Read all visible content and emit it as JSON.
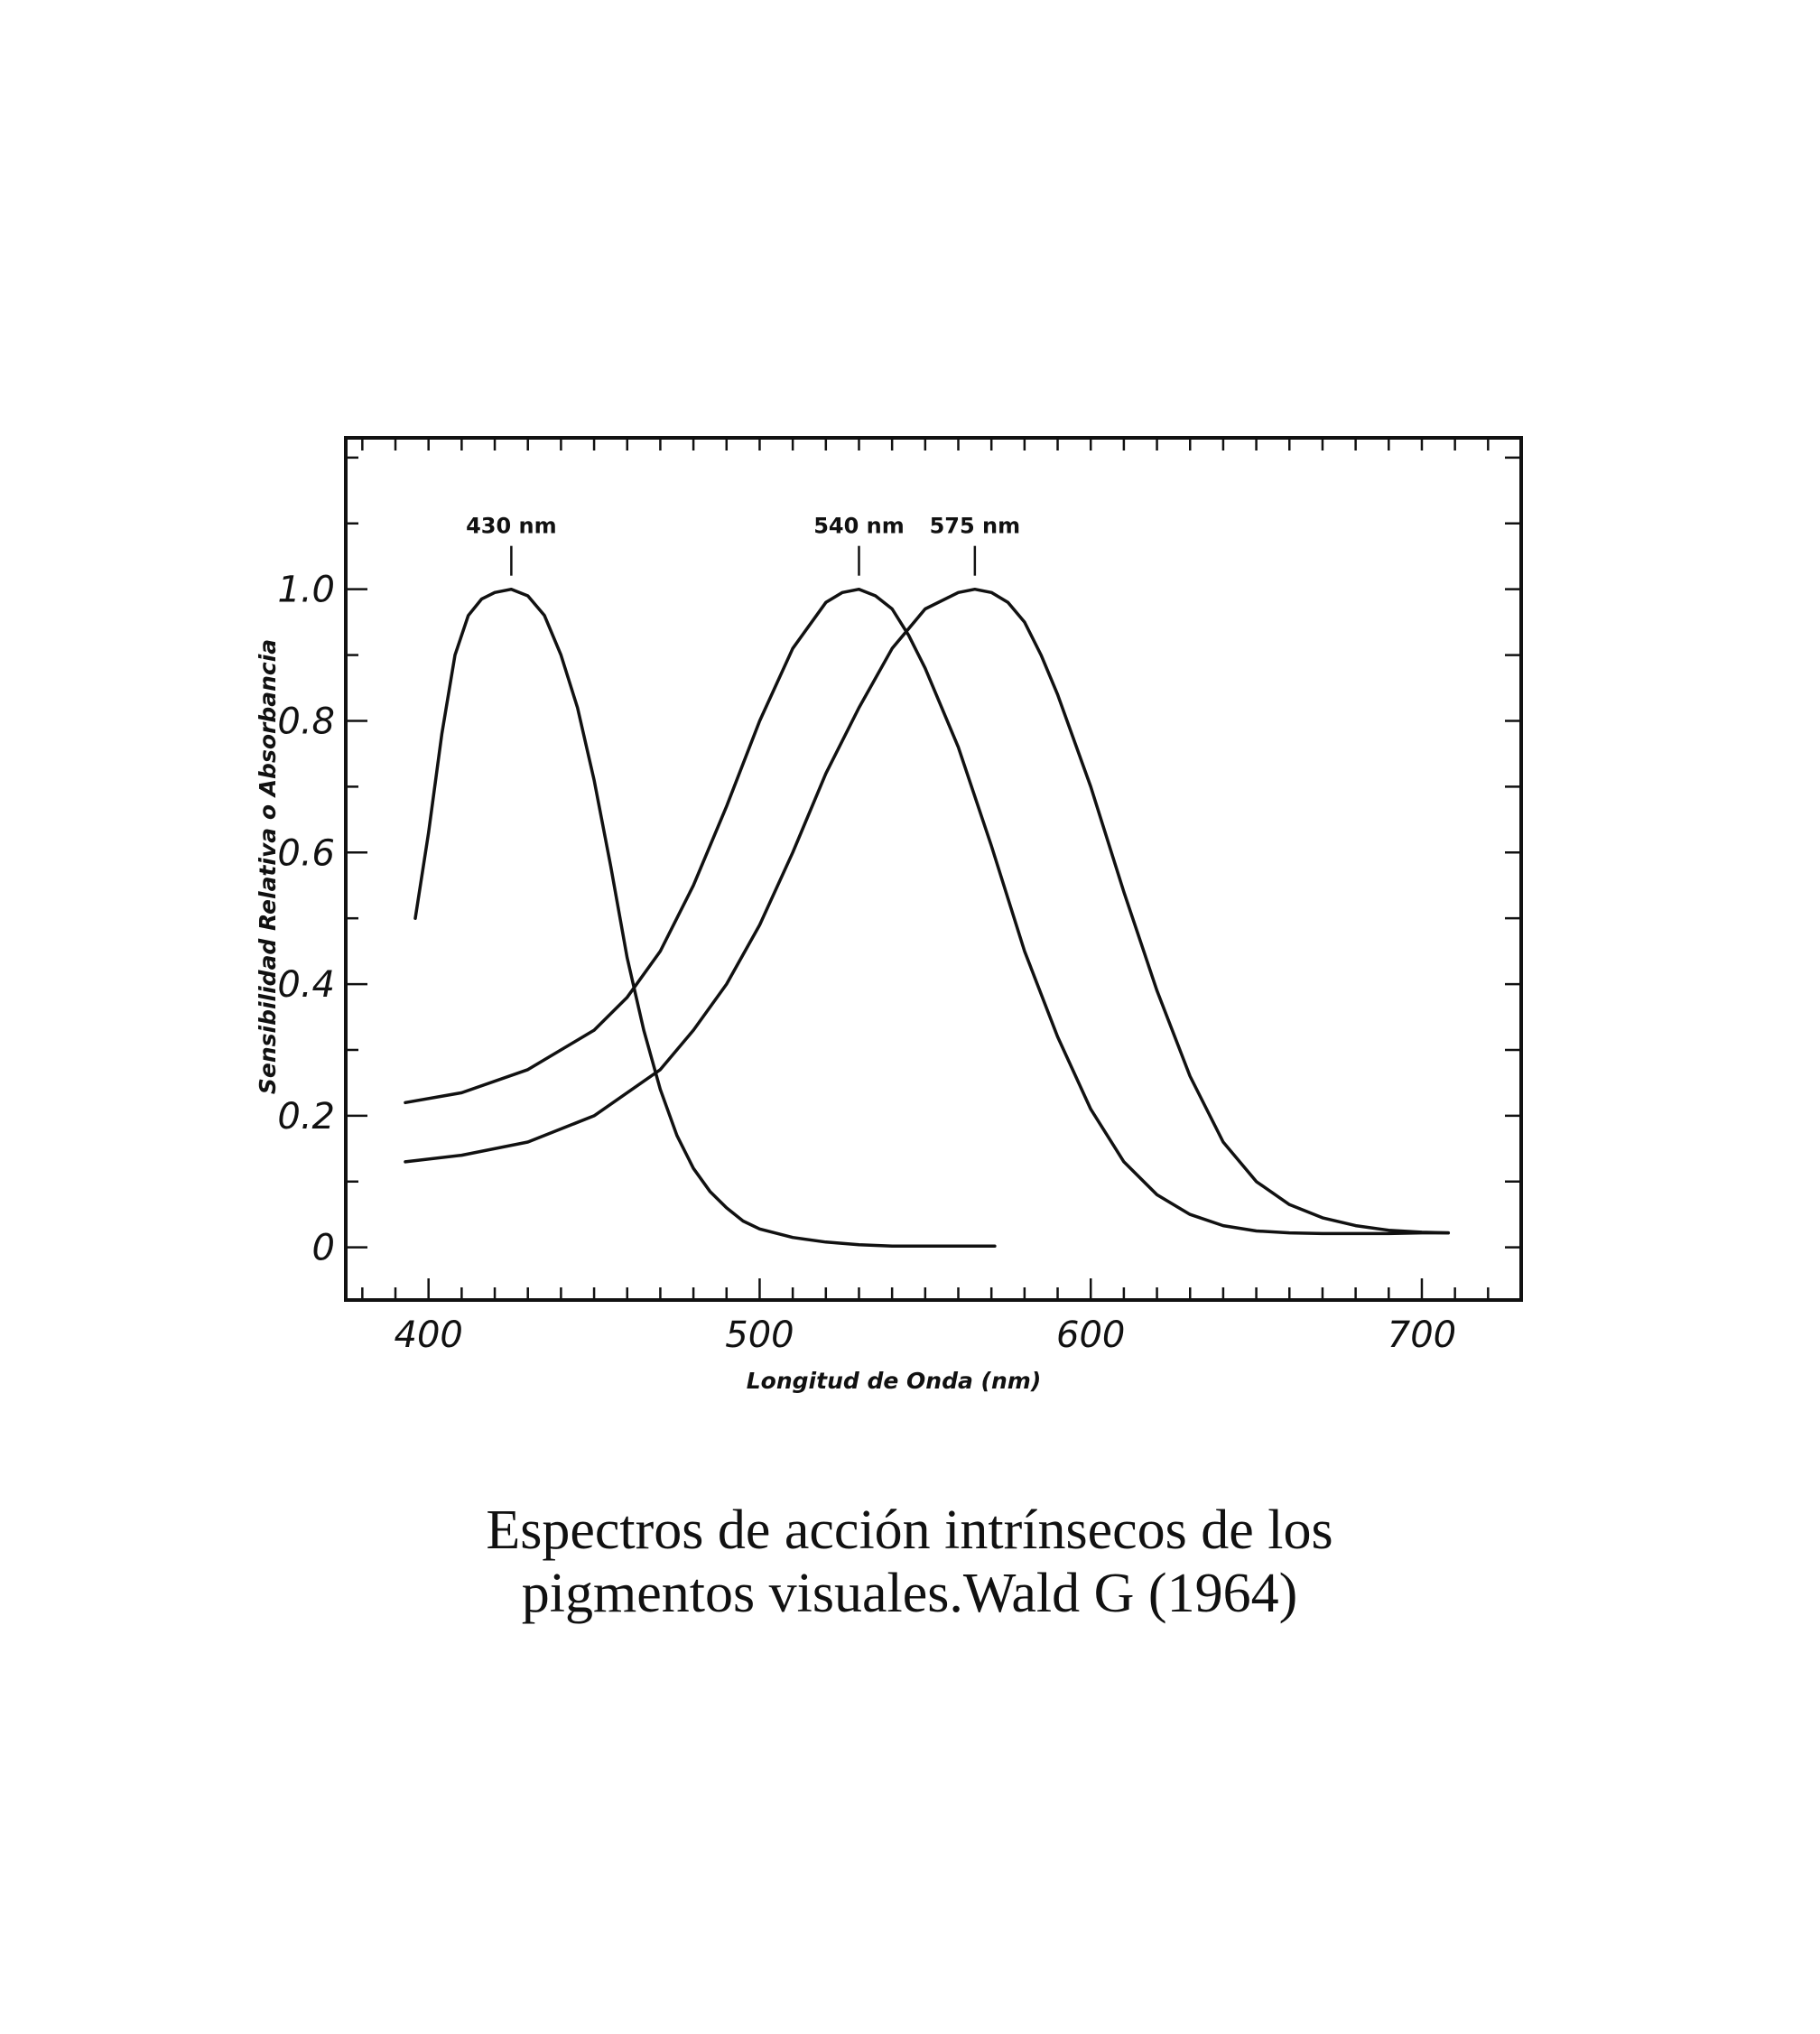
{
  "chart_data": {
    "type": "line",
    "xlabel": "Longitud de Onda (nm)",
    "ylabel": "Sensibilidad Relativa o Absorbancia",
    "xlim": [
      375,
      730
    ],
    "ylim": [
      -0.08,
      1.23
    ],
    "x_ticks": [
      400,
      500,
      600,
      700
    ],
    "x_tick_labels": [
      "400",
      "500",
      "600",
      "700"
    ],
    "y_ticks": [
      0,
      0.2,
      0.4,
      0.6,
      0.8,
      1.0
    ],
    "y_tick_labels": [
      "0",
      "0.2",
      "0.4",
      "0.6",
      "0.8",
      "1.0"
    ],
    "grid": false,
    "series": [
      {
        "x": [
          396,
          400,
          404,
          408,
          412,
          416,
          420,
          425,
          430,
          435,
          440,
          445,
          450,
          455,
          460,
          465,
          470,
          475,
          480,
          485,
          490,
          495,
          500,
          510,
          520,
          530,
          540,
          550,
          560,
          571
        ],
        "y": [
          0.5,
          0.63,
          0.78,
          0.9,
          0.96,
          0.985,
          0.995,
          1.0,
          0.99,
          0.96,
          0.9,
          0.82,
          0.71,
          0.58,
          0.44,
          0.33,
          0.24,
          0.17,
          0.12,
          0.085,
          0.06,
          0.04,
          0.028,
          0.015,
          0.008,
          0.004,
          0.002,
          0.002,
          0.002,
          0.002
        ]
      },
      {
        "x": [
          393,
          410,
          430,
          450,
          460,
          470,
          480,
          490,
          500,
          510,
          520,
          525,
          530,
          535,
          540,
          545,
          550,
          560,
          570,
          580,
          590,
          600,
          610,
          620,
          630,
          640,
          650,
          660,
          670,
          680,
          690,
          700,
          708
        ],
        "y": [
          0.22,
          0.235,
          0.27,
          0.33,
          0.38,
          0.45,
          0.55,
          0.67,
          0.8,
          0.91,
          0.98,
          0.995,
          1.0,
          0.99,
          0.97,
          0.93,
          0.88,
          0.76,
          0.61,
          0.45,
          0.32,
          0.21,
          0.13,
          0.08,
          0.05,
          0.033,
          0.025,
          0.022,
          0.021,
          0.021,
          0.021,
          0.022,
          0.022
        ]
      },
      {
        "x": [
          393,
          410,
          430,
          450,
          470,
          480,
          490,
          500,
          510,
          520,
          530,
          540,
          550,
          560,
          565,
          570,
          575,
          580,
          585,
          590,
          600,
          610,
          620,
          630,
          640,
          650,
          660,
          670,
          680,
          690,
          700,
          708
        ],
        "y": [
          0.13,
          0.14,
          0.16,
          0.2,
          0.27,
          0.33,
          0.4,
          0.49,
          0.6,
          0.72,
          0.82,
          0.91,
          0.97,
          0.995,
          1.0,
          0.995,
          0.98,
          0.95,
          0.9,
          0.84,
          0.7,
          0.54,
          0.39,
          0.26,
          0.16,
          0.1,
          0.065,
          0.045,
          0.033,
          0.026,
          0.023,
          0.022
        ]
      }
    ],
    "annotations": [
      {
        "text": "430 nm",
        "x": 425,
        "y": 1.0
      },
      {
        "text": "540 nm",
        "x": 530,
        "y": 1.0
      },
      {
        "text": "575 nm",
        "x": 565,
        "y": 1.0
      }
    ]
  },
  "caption": {
    "line1": "Espectros de acción intrínsecos de los",
    "line2": "pigmentos visuales.Wald G (1964)"
  }
}
